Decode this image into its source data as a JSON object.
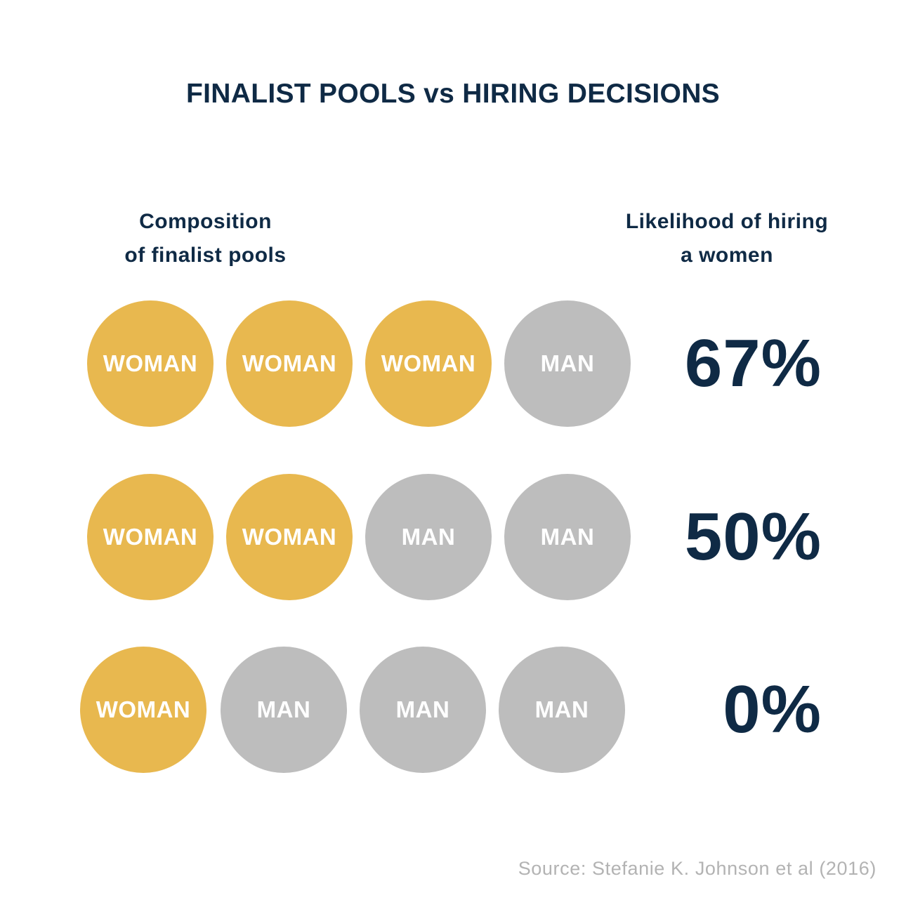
{
  "title": "FINALIST POOLS vs HIRING DECISIONS",
  "left_header": [
    "Composition",
    "of finalist pools"
  ],
  "right_header": [
    "Likelihood of hiring",
    "a women"
  ],
  "colors": {
    "woman": "#e8b84f",
    "man": "#bdbdbd",
    "text_dark": "#0f2a45",
    "source_text": "#b3b3b3"
  },
  "chart_data": {
    "type": "table",
    "rows": [
      {
        "pool": [
          "WOMAN",
          "WOMAN",
          "WOMAN",
          "MAN"
        ],
        "likelihood": "67%"
      },
      {
        "pool": [
          "WOMAN",
          "WOMAN",
          "MAN",
          "MAN"
        ],
        "likelihood": "50%"
      },
      {
        "pool": [
          "WOMAN",
          "MAN",
          "MAN",
          "MAN"
        ],
        "likelihood": "0%"
      }
    ]
  },
  "source": "Source: Stefanie K. Johnson et al (2016)"
}
